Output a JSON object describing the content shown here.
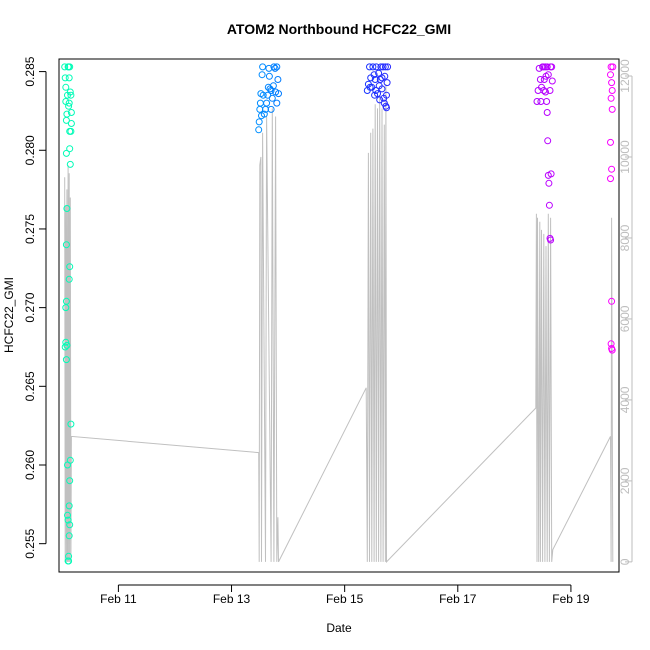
{
  "chart_data": {
    "type": "scatter",
    "title": "ATOM2 Northbound HCFC22_GMI",
    "xlabel": "Date",
    "ylabel": "HCFC22_GMI",
    "x_ticks": [
      "Feb 11",
      "Feb 13",
      "Feb 15",
      "Feb 17",
      "Feb 19"
    ],
    "x_tick_days": [
      11,
      13,
      15,
      17,
      19
    ],
    "xlim": [
      9.95,
      19.85
    ],
    "ylim": [
      0.2532,
      0.2858
    ],
    "y_ticks": [
      0.255,
      0.26,
      0.265,
      0.27,
      0.275,
      0.28,
      0.285
    ],
    "y_right_ticks": [
      0,
      2000,
      4000,
      6000,
      8000,
      10000,
      12000
    ],
    "y_right_lim": [
      -250,
      12420
    ],
    "grid": false,
    "point_style": "open-circle",
    "color_scale": [
      "#00FFB3",
      "#00C8FF",
      "#0040FF",
      "#7000FF",
      "#FF00FF"
    ],
    "series": [
      {
        "values": [
          [
            10.05,
            0.2853
          ],
          [
            10.06,
            0.2846
          ],
          [
            10.07,
            0.284
          ],
          [
            10.07,
            0.2831
          ],
          [
            10.08,
            0.2819
          ],
          [
            10.08,
            0.2798
          ],
          [
            10.09,
            0.2763
          ],
          [
            10.08,
            0.274
          ],
          [
            10.08,
            0.2704
          ],
          [
            10.07,
            0.27
          ],
          [
            10.07,
            0.2678
          ],
          [
            10.06,
            0.2675
          ],
          [
            10.08,
            0.2667
          ],
          [
            10.09,
            0.2676
          ],
          [
            10.1,
            0.26
          ],
          [
            10.1,
            0.2568
          ],
          [
            10.11,
            0.2565
          ],
          [
            10.11,
            0.2539
          ],
          [
            10.12,
            0.2539
          ],
          [
            10.12,
            0.2542
          ],
          [
            10.13,
            0.2555
          ],
          [
            10.14,
            0.2562
          ],
          [
            10.13,
            0.2574
          ],
          [
            10.14,
            0.259
          ],
          [
            10.15,
            0.2603
          ],
          [
            10.16,
            0.2626
          ],
          [
            10.13,
            0.2718
          ],
          [
            10.14,
            0.2726
          ],
          [
            10.12,
            0.2828
          ],
          [
            10.13,
            0.283
          ],
          [
            10.14,
            0.2801
          ],
          [
            10.15,
            0.2791
          ],
          [
            10.14,
            0.2812
          ],
          [
            10.13,
            0.2846
          ],
          [
            10.14,
            0.2853
          ],
          [
            10.15,
            0.2837
          ],
          [
            10.16,
            0.2835
          ],
          [
            10.17,
            0.2824
          ],
          [
            10.16,
            0.2812
          ],
          [
            10.17,
            0.2817
          ],
          [
            10.11,
            0.2853
          ],
          [
            10.12,
            0.2853
          ],
          [
            10.1,
            0.2835
          ],
          [
            10.09,
            0.2823
          ]
        ]
      },
      {
        "values": [
          [
            13.48,
            0.2813
          ],
          [
            13.49,
            0.2818
          ],
          [
            13.5,
            0.2826
          ],
          [
            13.51,
            0.283
          ],
          [
            13.52,
            0.2836
          ],
          [
            13.53,
            0.2822
          ],
          [
            13.54,
            0.2848
          ],
          [
            13.55,
            0.2853
          ],
          [
            13.56,
            0.2835
          ],
          [
            13.58,
            0.2823
          ],
          [
            13.6,
            0.2826
          ],
          [
            13.62,
            0.283
          ],
          [
            13.64,
            0.2835
          ],
          [
            13.66,
            0.2852
          ],
          [
            13.67,
            0.2847
          ],
          [
            13.68,
            0.2839
          ],
          [
            13.7,
            0.2838
          ],
          [
            13.72,
            0.2833
          ],
          [
            13.74,
            0.2841
          ],
          [
            13.75,
            0.2853
          ],
          [
            13.78,
            0.2837
          ],
          [
            13.8,
            0.2853
          ],
          [
            13.82,
            0.2845
          ],
          [
            13.83,
            0.2836
          ],
          [
            13.7,
            0.2826
          ],
          [
            13.65,
            0.284
          ],
          [
            13.8,
            0.283
          ],
          [
            13.77,
            0.2852
          ]
        ]
      },
      {
        "values": [
          [
            15.4,
            0.2838
          ],
          [
            15.42,
            0.2842
          ],
          [
            15.44,
            0.2853
          ],
          [
            15.46,
            0.2846
          ],
          [
            15.48,
            0.284
          ],
          [
            15.5,
            0.2853
          ],
          [
            15.52,
            0.2848
          ],
          [
            15.54,
            0.2845
          ],
          [
            15.55,
            0.2838
          ],
          [
            15.56,
            0.2853
          ],
          [
            15.58,
            0.2836
          ],
          [
            15.6,
            0.2849
          ],
          [
            15.62,
            0.2832
          ],
          [
            15.63,
            0.2845
          ],
          [
            15.64,
            0.2853
          ],
          [
            15.66,
            0.2839
          ],
          [
            15.68,
            0.2853
          ],
          [
            15.7,
            0.283
          ],
          [
            15.71,
            0.2847
          ],
          [
            15.72,
            0.2853
          ],
          [
            15.73,
            0.2828
          ],
          [
            15.74,
            0.2835
          ],
          [
            15.75,
            0.2843
          ],
          [
            15.76,
            0.2853
          ],
          [
            15.45,
            0.284
          ],
          [
            15.53,
            0.2835
          ],
          [
            15.61,
            0.2841
          ],
          [
            15.69,
            0.2833
          ],
          [
            15.74,
            0.2827
          ],
          [
            15.66,
            0.2846
          ]
        ]
      },
      {
        "values": [
          [
            18.4,
            0.2831
          ],
          [
            18.42,
            0.2838
          ],
          [
            18.44,
            0.2852
          ],
          [
            18.46,
            0.2845
          ],
          [
            18.48,
            0.284
          ],
          [
            18.5,
            0.2853
          ],
          [
            18.52,
            0.2838
          ],
          [
            18.53,
            0.2845
          ],
          [
            18.55,
            0.2853
          ],
          [
            18.56,
            0.2847
          ],
          [
            18.57,
            0.2831
          ],
          [
            18.58,
            0.2824
          ],
          [
            18.59,
            0.2806
          ],
          [
            18.6,
            0.2784
          ],
          [
            18.61,
            0.2779
          ],
          [
            18.62,
            0.2765
          ],
          [
            18.63,
            0.2744
          ],
          [
            18.64,
            0.2743
          ],
          [
            18.65,
            0.2785
          ],
          [
            18.66,
            0.2853
          ],
          [
            18.67,
            0.2844
          ],
          [
            18.64,
            0.2853
          ],
          [
            18.63,
            0.2838
          ],
          [
            18.6,
            0.2848
          ],
          [
            18.58,
            0.2853
          ],
          [
            18.52,
            0.2853
          ],
          [
            18.47,
            0.2831
          ],
          [
            18.55,
            0.2837
          ]
        ]
      },
      {
        "values": [
          [
            19.7,
            0.2848
          ],
          [
            19.71,
            0.2853
          ],
          [
            19.72,
            0.2843
          ],
          [
            19.71,
            0.2833
          ],
          [
            19.73,
            0.2826
          ],
          [
            19.7,
            0.2805
          ],
          [
            19.72,
            0.2788
          ],
          [
            19.7,
            0.2782
          ],
          [
            19.72,
            0.2704
          ],
          [
            19.71,
            0.2677
          ],
          [
            19.72,
            0.2674
          ],
          [
            19.73,
            0.2673
          ],
          [
            19.74,
            0.2853
          ],
          [
            19.73,
            0.2838
          ]
        ]
      }
    ],
    "altitude_series": {
      "axis": "right",
      "color": "#c0c0c0",
      "values": [
        [
          10.05,
          9500
        ],
        [
          10.06,
          0
        ],
        [
          10.07,
          8800
        ],
        [
          10.08,
          0
        ],
        [
          10.09,
          9200
        ],
        [
          10.1,
          0
        ],
        [
          10.11,
          9800
        ],
        [
          10.12,
          0
        ],
        [
          10.13,
          9600
        ],
        [
          10.14,
          0
        ],
        [
          10.15,
          9000
        ],
        [
          10.16,
          0
        ],
        [
          10.17,
          3100
        ],
        [
          13.48,
          2700
        ],
        [
          13.49,
          0
        ],
        [
          13.5,
          9800
        ],
        [
          13.52,
          10000
        ],
        [
          13.53,
          0
        ],
        [
          13.55,
          10600
        ],
        [
          13.6,
          0
        ],
        [
          13.62,
          11000
        ],
        [
          13.7,
          0
        ],
        [
          13.72,
          11200
        ],
        [
          13.75,
          0
        ],
        [
          13.78,
          11000
        ],
        [
          13.8,
          0
        ],
        [
          13.82,
          1100
        ],
        [
          13.83,
          0
        ],
        [
          15.38,
          4300
        ],
        [
          15.4,
          0
        ],
        [
          15.42,
          10100
        ],
        [
          15.44,
          0
        ],
        [
          15.46,
          10600
        ],
        [
          15.48,
          0
        ],
        [
          15.5,
          10700
        ],
        [
          15.52,
          0
        ],
        [
          15.54,
          11300
        ],
        [
          15.56,
          0
        ],
        [
          15.58,
          11200
        ],
        [
          15.6,
          0
        ],
        [
          15.62,
          11500
        ],
        [
          15.64,
          0
        ],
        [
          15.66,
          11200
        ],
        [
          15.68,
          0
        ],
        [
          15.7,
          10800
        ],
        [
          15.72,
          0
        ],
        [
          15.73,
          11800
        ],
        [
          15.74,
          0
        ],
        [
          18.38,
          3800
        ],
        [
          18.39,
          8600
        ],
        [
          18.4,
          0
        ],
        [
          18.41,
          8500
        ],
        [
          18.43,
          0
        ],
        [
          18.45,
          8400
        ],
        [
          18.46,
          0
        ],
        [
          18.48,
          8200
        ],
        [
          18.5,
          0
        ],
        [
          18.52,
          8100
        ],
        [
          18.54,
          0
        ],
        [
          18.56,
          7800
        ],
        [
          18.58,
          0
        ],
        [
          18.6,
          8600
        ],
        [
          18.62,
          0
        ],
        [
          18.64,
          8500
        ],
        [
          18.66,
          0
        ],
        [
          18.68,
          300
        ],
        [
          19.7,
          3100
        ],
        [
          19.71,
          0
        ],
        [
          19.72,
          8500
        ],
        [
          19.74,
          0
        ]
      ]
    }
  }
}
